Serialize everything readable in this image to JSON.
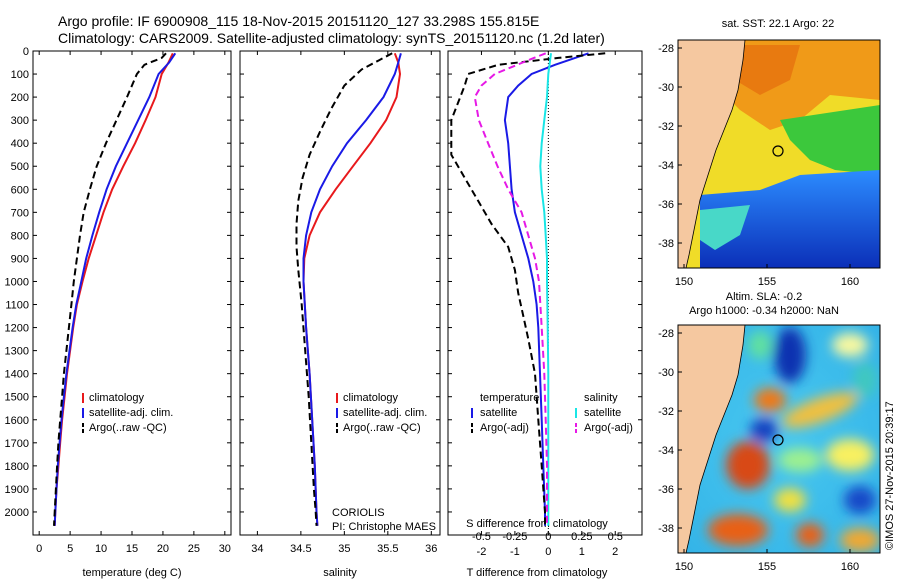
{
  "header": {
    "line1": "Argo profile: IF 6900908_115 18-Nov-2015 20151120_127 33.298S 155.815E",
    "line2": "Climatology: CARS2009. Satellite-adjusted climatology: synTS_20151120.nc (1.2d later)"
  },
  "colors": {
    "climatology": "#e8191c",
    "satellite": "#1a1ae6",
    "argo": "#000000",
    "satellite_s": "#19e6e6",
    "argo_s": "#e619e6",
    "land": "#f5c8a0"
  },
  "chart_data": [
    {
      "type": "line",
      "xlabel": "temperature (deg C)",
      "xlim": [
        -1,
        31
      ],
      "xticks": [
        0,
        5,
        10,
        15,
        20,
        25,
        30
      ],
      "ylim": [
        0,
        2100
      ],
      "yticks": [
        0,
        100,
        200,
        300,
        400,
        500,
        600,
        700,
        800,
        900,
        1000,
        1100,
        1200,
        1300,
        1400,
        1500,
        1600,
        1700,
        1800,
        1900,
        2000
      ],
      "legend": [
        "climatology",
        "satellite-adj. clim.",
        "Argo(..raw -QC)"
      ],
      "series": [
        {
          "name": "climatology",
          "style": "solid",
          "color": "#e8191c",
          "depth": [
            10,
            50,
            100,
            200,
            300,
            400,
            500,
            600,
            700,
            800,
            900,
            1000,
            1100,
            1200,
            1300,
            1400,
            1500,
            1600,
            1700,
            1800,
            1900,
            2000,
            2060
          ],
          "values": [
            21.6,
            20.9,
            19.8,
            18.8,
            17.2,
            15.5,
            13.6,
            11.8,
            10.4,
            9.2,
            8.0,
            7.0,
            6.1,
            5.5,
            5.0,
            4.5,
            4.1,
            3.7,
            3.4,
            3.1,
            2.8,
            2.6,
            2.5
          ]
        },
        {
          "name": "satellite-adj. clim.",
          "style": "solid",
          "color": "#1a1ae6",
          "depth": [
            10,
            50,
            100,
            200,
            300,
            400,
            500,
            600,
            700,
            800,
            900,
            1000,
            1100,
            1200,
            1300,
            1400,
            1500,
            1600,
            1700,
            1800,
            1900,
            2000,
            2060
          ],
          "values": [
            22.0,
            21.0,
            19.3,
            17.8,
            16.0,
            14.2,
            12.4,
            10.9,
            9.7,
            8.6,
            7.6,
            6.8,
            6.0,
            5.4,
            4.9,
            4.4,
            4.0,
            3.6,
            3.3,
            3.0,
            2.8,
            2.6,
            2.5
          ]
        },
        {
          "name": "Argo(..raw -QC)",
          "style": "dashed",
          "color": "#000000",
          "depth": [
            10,
            30,
            60,
            100,
            200,
            300,
            400,
            500,
            600,
            700,
            800,
            900,
            1000,
            1100,
            1200,
            1300,
            1400,
            1500,
            1600,
            1700,
            1800,
            1900,
            2000,
            2060
          ],
          "values": [
            20.5,
            19.8,
            17.0,
            15.8,
            14.2,
            12.5,
            10.8,
            9.3,
            8.2,
            7.2,
            6.6,
            6.1,
            5.6,
            5.2,
            4.8,
            4.4,
            4.0,
            3.7,
            3.4,
            3.1,
            2.9,
            2.7,
            2.5,
            2.4
          ]
        }
      ]
    },
    {
      "type": "line",
      "xlabel": "salinity",
      "xlim": [
        33.8,
        36.1
      ],
      "xticks": [
        34,
        34.5,
        35,
        35.5,
        36
      ],
      "xticklabels": [
        "34",
        "34.5",
        "35",
        "35.5",
        "36"
      ],
      "ylim": [
        0,
        2100
      ],
      "legend": [
        "climatology",
        "satellite-adj. clim.",
        "Argo(..raw -QC)"
      ],
      "annotation": [
        "CORIOLIS",
        "PI: Christophe MAES"
      ],
      "series": [
        {
          "name": "climatology",
          "style": "solid",
          "color": "#e8191c",
          "depth": [
            10,
            50,
            100,
            200,
            300,
            400,
            500,
            600,
            700,
            800,
            900,
            1000,
            1200,
            1400,
            1600,
            1800,
            2000,
            2060
          ],
          "values": [
            35.58,
            35.62,
            35.64,
            35.6,
            35.48,
            35.3,
            35.1,
            34.9,
            34.72,
            34.6,
            34.54,
            34.53,
            34.56,
            34.6,
            34.63,
            34.66,
            34.68,
            34.69
          ]
        },
        {
          "name": "satellite-adj. clim.",
          "style": "solid",
          "color": "#1a1ae6",
          "depth": [
            10,
            50,
            100,
            200,
            300,
            400,
            500,
            600,
            700,
            800,
            900,
            1000,
            1200,
            1400,
            1600,
            1800,
            2000,
            2060
          ],
          "values": [
            35.65,
            35.62,
            35.58,
            35.45,
            35.25,
            35.03,
            34.86,
            34.72,
            34.62,
            34.56,
            34.53,
            34.53,
            34.56,
            34.6,
            34.63,
            34.66,
            34.68,
            34.69
          ]
        },
        {
          "name": "Argo(..raw -QC)",
          "style": "dashed",
          "color": "#000000",
          "depth": [
            10,
            40,
            80,
            150,
            250,
            350,
            450,
            550,
            650,
            750,
            850,
            950,
            1100,
            1300,
            1500,
            1700,
            1900,
            2000,
            2060
          ],
          "values": [
            35.55,
            35.4,
            35.2,
            35.0,
            34.85,
            34.72,
            34.6,
            34.52,
            34.47,
            34.45,
            34.45,
            34.47,
            34.51,
            34.55,
            34.59,
            34.62,
            34.65,
            34.67,
            34.68
          ]
        }
      ]
    },
    {
      "type": "line",
      "xlabel": "T difference from climatology",
      "x2label": "S difference from climatology",
      "xlim": [
        -3,
        2.8
      ],
      "xticks_T": [
        -2,
        -1,
        0,
        1,
        2
      ],
      "xticks_S": [
        -0.5,
        -0.25,
        0,
        0.25,
        0.5
      ],
      "s_scale": 4,
      "ylim": [
        0,
        2100
      ],
      "legend_temperature": {
        "title": "temperature",
        "items": [
          "satellite",
          "Argo(-adj)"
        ]
      },
      "legend_salinity": {
        "title": "salinity",
        "items": [
          "satellite",
          "Argo(-adj)"
        ]
      },
      "series": [
        {
          "name": "satellite",
          "kind": "temperature",
          "style": "solid",
          "color": "#1a1ae6",
          "depth": [
            10,
            30,
            60,
            100,
            150,
            200,
            300,
            400,
            500,
            600,
            700,
            800,
            900,
            1000,
            1100,
            1200,
            1400,
            1600,
            1800,
            2000,
            2060
          ],
          "values": [
            1.2,
            0.8,
            0.2,
            -0.5,
            -0.9,
            -1.2,
            -1.3,
            -1.2,
            -1.15,
            -1.1,
            -1.0,
            -0.8,
            -0.6,
            -0.45,
            -0.35,
            -0.3,
            -0.25,
            -0.2,
            -0.15,
            -0.1,
            -0.1
          ]
        },
        {
          "name": "Argo(-adj)",
          "kind": "temperature",
          "style": "dashed",
          "color": "#000000",
          "depth": [
            10,
            30,
            60,
            100,
            150,
            300,
            450,
            550,
            650,
            750,
            850,
            950,
            1050,
            1150,
            1250,
            1400,
            1600,
            1800,
            2000,
            2060
          ],
          "values": [
            1.7,
            0.3,
            -1.5,
            -2.4,
            -2.5,
            -2.9,
            -2.9,
            -2.5,
            -2.1,
            -1.7,
            -1.2,
            -1.0,
            -0.9,
            -0.75,
            -0.6,
            -0.4,
            -0.3,
            -0.2,
            -0.1,
            -0.1
          ]
        },
        {
          "name": "satellite",
          "kind": "salinity",
          "style": "solid",
          "color": "#19e6e6",
          "depth": [
            10,
            100,
            200,
            300,
            400,
            500,
            600,
            700,
            800,
            900,
            1000,
            1200,
            1400,
            1600,
            1800,
            2000,
            2060
          ],
          "values": [
            0.02,
            0.0,
            -0.01,
            -0.03,
            -0.05,
            -0.06,
            -0.05,
            -0.03,
            -0.02,
            -0.01,
            -0.01,
            -0.005,
            0,
            0,
            0,
            0,
            0
          ]
        },
        {
          "name": "Argo(-adj)",
          "kind": "salinity",
          "style": "dashed",
          "color": "#e619e6",
          "depth": [
            10,
            40,
            100,
            150,
            200,
            300,
            400,
            500,
            600,
            700,
            800,
            900,
            1000,
            1200,
            1400,
            1600,
            1800,
            2000,
            2060
          ],
          "values": [
            -0.02,
            -0.15,
            -0.4,
            -0.5,
            -0.55,
            -0.52,
            -0.45,
            -0.38,
            -0.3,
            -0.2,
            -0.15,
            -0.1,
            -0.07,
            -0.05,
            -0.03,
            -0.02,
            -0.01,
            -0.01,
            -0.01
          ]
        }
      ]
    }
  ],
  "maps": [
    {
      "title": "sat. SST: 22.1  Argo: 22",
      "xticks": [
        "150",
        "155",
        "160"
      ],
      "yticks": [
        "-28",
        "-30",
        "-32",
        "-34",
        "-36",
        "-38"
      ]
    },
    {
      "title": "Altim. SLA: -0.2",
      "subtitle": "Argo h1000: -0.34 h2000: NaN",
      "xticks": [
        "150",
        "155",
        "160"
      ],
      "yticks": [
        "-28",
        "-30",
        "-32",
        "-34",
        "-36",
        "-38"
      ]
    }
  ],
  "side_text": "©IMOS 27-Nov-2015 20:39:17"
}
